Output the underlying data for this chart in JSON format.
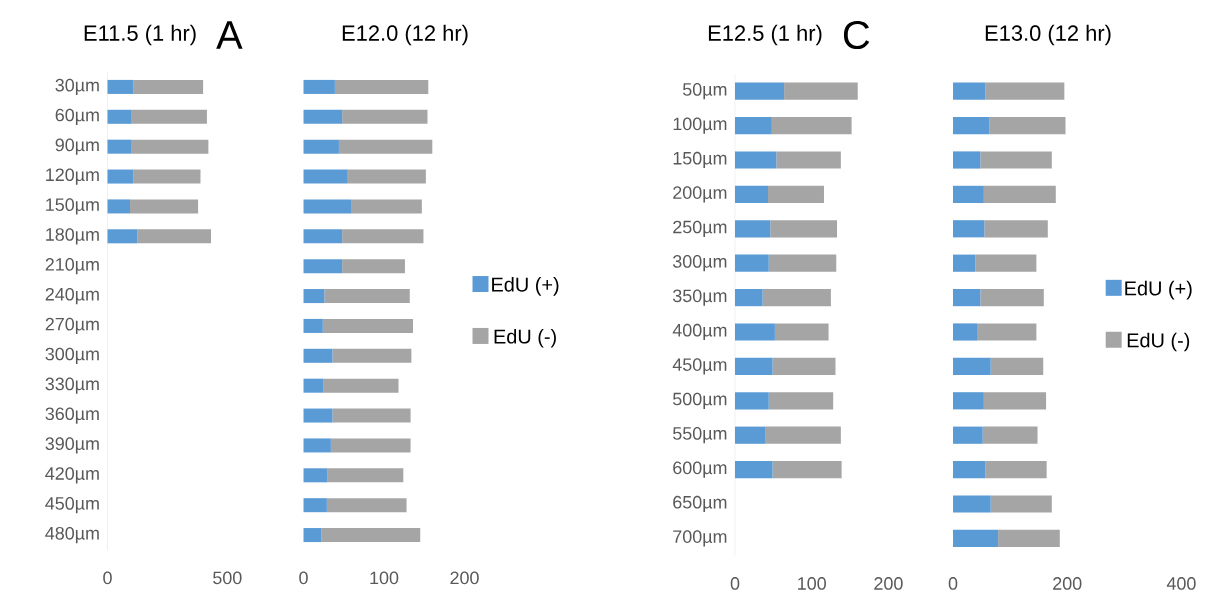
{
  "chart_data": [
    {
      "type": "bar",
      "orientation": "horizontal",
      "stacked": true,
      "title": "E11.5 (1 hr)",
      "annotations": [
        "A"
      ],
      "categories": [
        "30µm",
        "60µm",
        "90µm",
        "120µm",
        "150µm",
        "180µm",
        "210µm",
        "240µm",
        "270µm",
        "300µm",
        "330µm",
        "360µm",
        "390µm",
        "420µm",
        "450µm",
        "480µm"
      ],
      "series": [
        {
          "color": "#5b9bd5",
          "values": [
            107,
            98,
            98,
            107,
            94,
            124,
            null,
            null,
            null,
            null,
            null,
            null,
            null,
            null,
            null,
            null
          ]
        },
        {
          "color": "#a5a5a5",
          "values": [
            292,
            317,
            323,
            281,
            284,
            308,
            null,
            null,
            null,
            null,
            null,
            null,
            null,
            null,
            null,
            null
          ]
        }
      ],
      "xlim": [
        0,
        500
      ],
      "xticks": [
        0,
        500
      ],
      "legend": false
    },
    {
      "type": "bar",
      "orientation": "horizontal",
      "stacked": true,
      "title": "E12.0 (12 hr)",
      "categories": [
        null,
        null,
        null,
        null,
        null,
        null,
        null,
        null,
        null,
        null,
        null,
        null,
        null,
        null,
        null,
        null
      ],
      "series": [
        {
          "name": "EdU (+)",
          "color": "#5b9bd5",
          "values": [
            39,
            48,
            44,
            55,
            59,
            48,
            48,
            26,
            24,
            36,
            25,
            36,
            34,
            30,
            29,
            22
          ]
        },
        {
          "name": "EdU (-)",
          "color": "#a5a5a5",
          "values": [
            116,
            106,
            116,
            97,
            88,
            101,
            78,
            106,
            112,
            98,
            93,
            97,
            99,
            94,
            99,
            123
          ]
        }
      ],
      "xlim": [
        0,
        200
      ],
      "xticks": [
        0,
        100,
        200
      ],
      "tick_labels": "x",
      "legend": "right"
    },
    {
      "type": "bar",
      "orientation": "horizontal",
      "stacked": true,
      "title": "E12.5 (1 hr)",
      "annotations": [
        "C"
      ],
      "categories": [
        "50µm",
        "100µm",
        "150µm",
        "200µm",
        "250µm",
        "300µm",
        "350µm",
        "400µm",
        "450µm",
        "500µm",
        "550µm",
        "600µm",
        "650µm",
        "700µm"
      ],
      "series": [
        {
          "color": "#5b9bd5",
          "values": [
            64,
            48,
            54,
            43,
            46,
            44,
            36,
            52,
            49,
            44,
            40,
            49,
            null,
            null
          ]
        },
        {
          "color": "#a5a5a5",
          "values": [
            96,
            104,
            84,
            73,
            87,
            88,
            89,
            70,
            82,
            84,
            98,
            90,
            null,
            null
          ]
        }
      ],
      "xlim": [
        0,
        200
      ],
      "xticks": [
        0,
        100,
        200
      ],
      "legend": false
    },
    {
      "type": "bar",
      "orientation": "horizontal",
      "stacked": true,
      "title": "E13.0 (12 hr)",
      "categories": [
        null,
        null,
        null,
        null,
        null,
        null,
        null,
        null,
        null,
        null,
        null,
        null,
        null,
        null
      ],
      "series": [
        {
          "name": "EdU (+)",
          "color": "#5b9bd5",
          "values": [
            57,
            64,
            48,
            54,
            55,
            39,
            48,
            42,
            66,
            54,
            52,
            57,
            66,
            79
          ]
        },
        {
          "name": "EdU (-)",
          "color": "#a5a5a5",
          "values": [
            138,
            133,
            125,
            126,
            111,
            107,
            111,
            104,
            92,
            109,
            96,
            107,
            107,
            108
          ]
        }
      ],
      "xlim": [
        0,
        400
      ],
      "xticks": [
        0,
        200,
        400
      ],
      "tick_labels": "x",
      "legend": "right"
    }
  ]
}
